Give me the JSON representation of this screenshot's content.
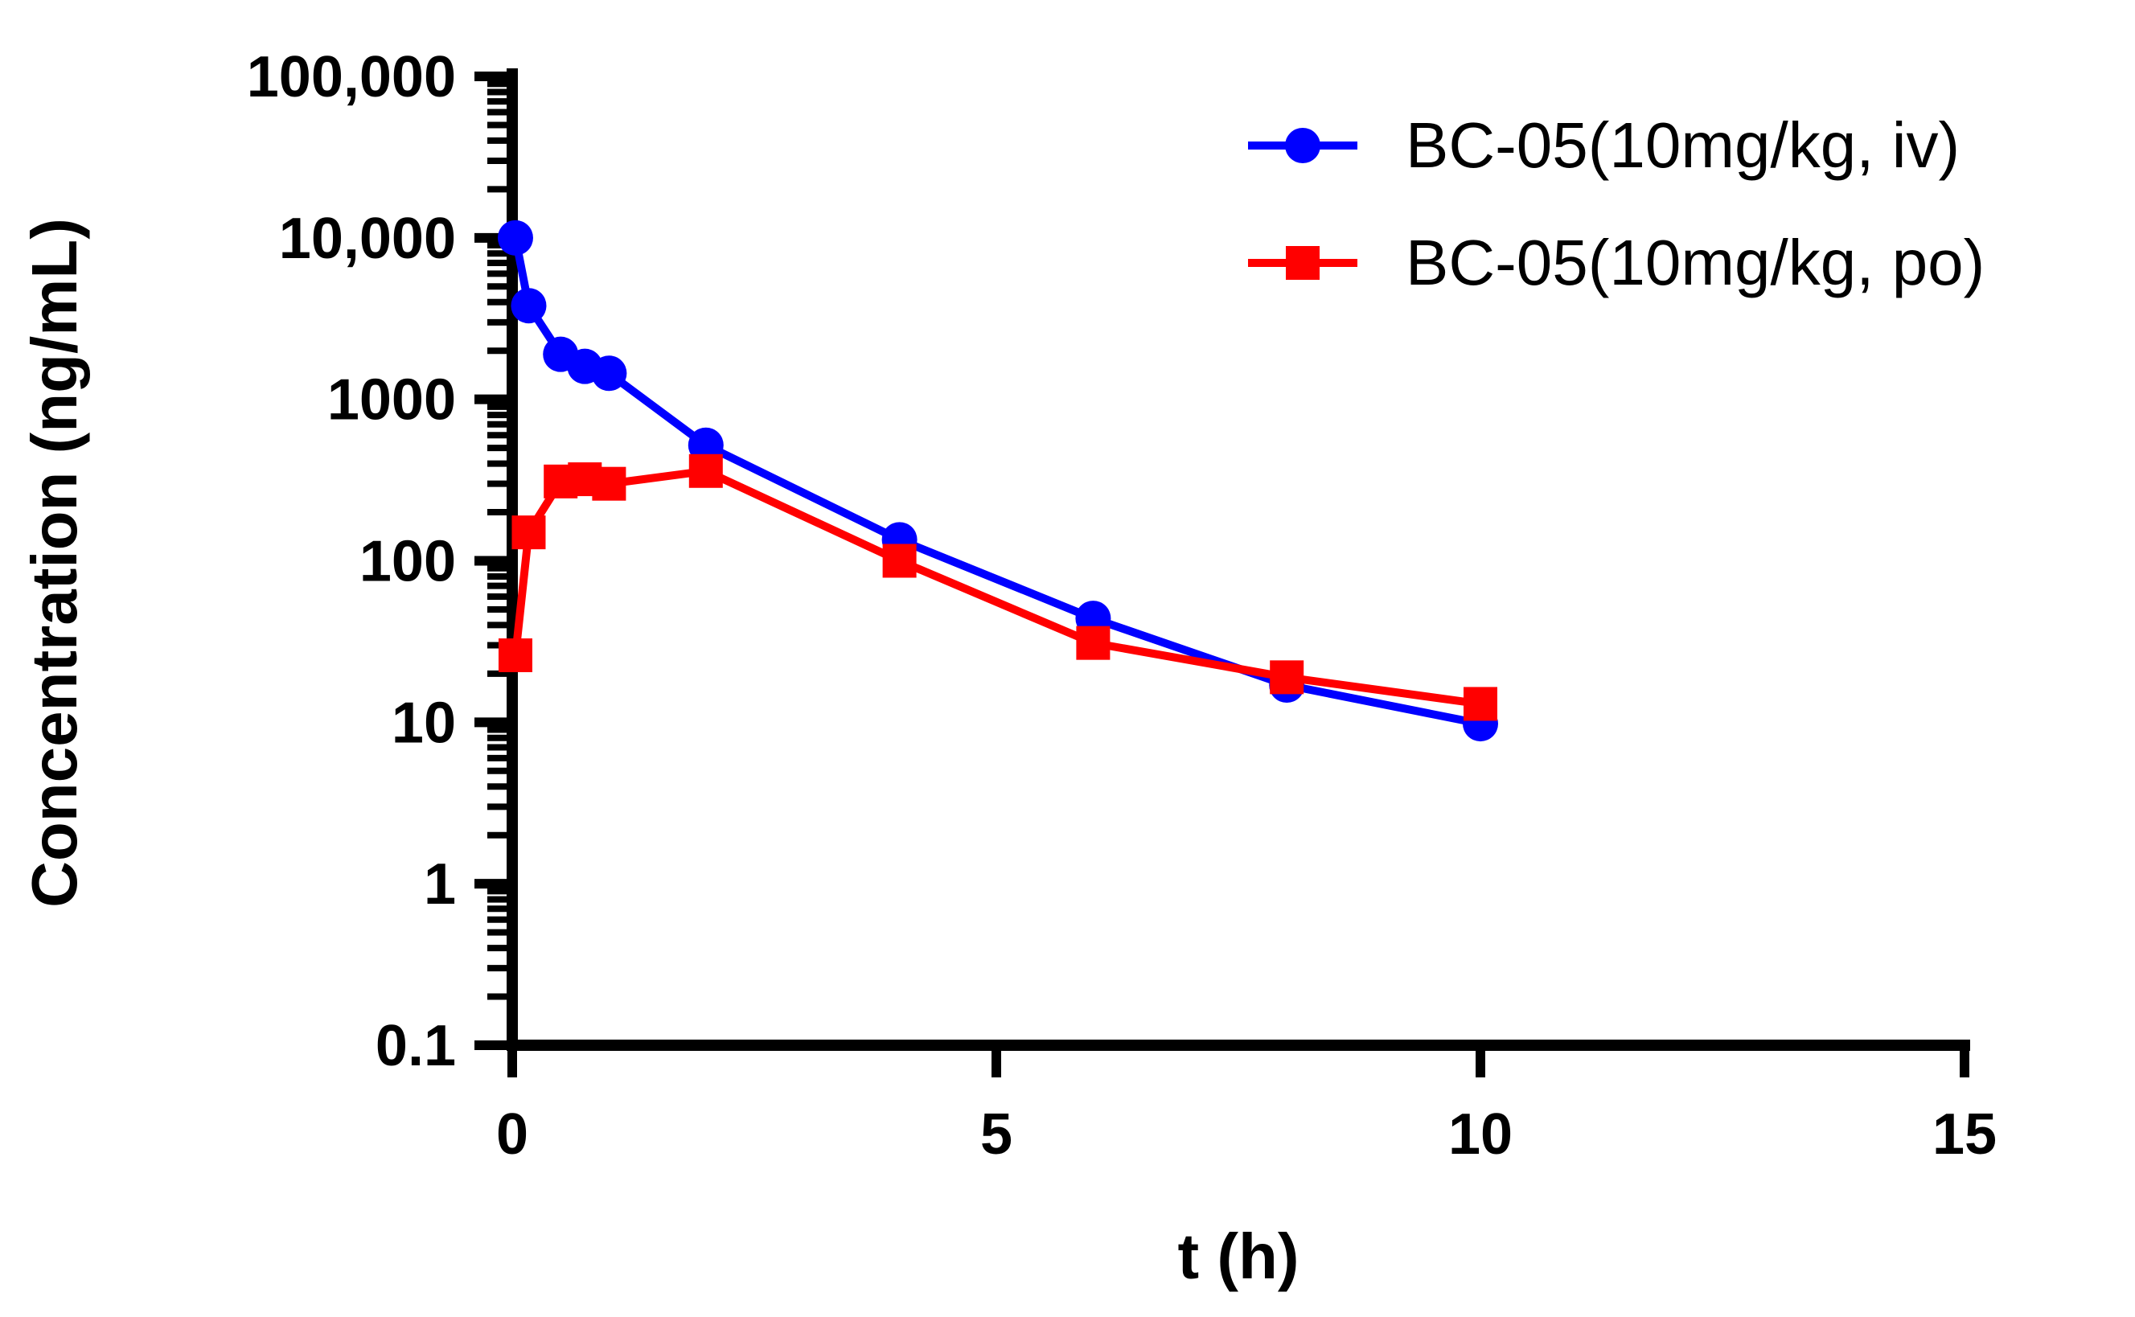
{
  "chart_data": {
    "type": "line",
    "title": "",
    "xlabel": "t (h)",
    "ylabel": "Concentration (ng/mL)",
    "x_scale": "linear",
    "y_scale": "log",
    "xlim": [
      0,
      15
    ],
    "ylim": [
      0.1,
      100000
    ],
    "x_ticks": [
      0,
      5,
      10,
      15
    ],
    "x_tick_labels": [
      "0",
      "5",
      "10",
      "15"
    ],
    "y_ticks": [
      0.1,
      1,
      10,
      100,
      1000,
      10000,
      100000
    ],
    "y_tick_labels": [
      "0.1",
      "1",
      "10",
      "100",
      "1000",
      "10,000",
      "100,000"
    ],
    "grid": false,
    "legend_position": "top-right",
    "series": [
      {
        "name": "BC-05(10mg/kg, iv)",
        "color": "#0000ff",
        "marker": "circle",
        "x": [
          0.033,
          0.17,
          0.5,
          0.75,
          1,
          2,
          4,
          6,
          8,
          10
        ],
        "y": [
          10000,
          3800,
          1900,
          1600,
          1450,
          520,
          135,
          44,
          17,
          9.8
        ]
      },
      {
        "name": "BC-05(10mg/kg, po)",
        "color": "#ff0000",
        "marker": "square",
        "x": [
          0.033,
          0.17,
          0.5,
          0.75,
          1,
          2,
          4,
          6,
          8,
          10
        ],
        "y": [
          26,
          150,
          310,
          320,
          300,
          360,
          100,
          31,
          19,
          13
        ]
      }
    ]
  }
}
